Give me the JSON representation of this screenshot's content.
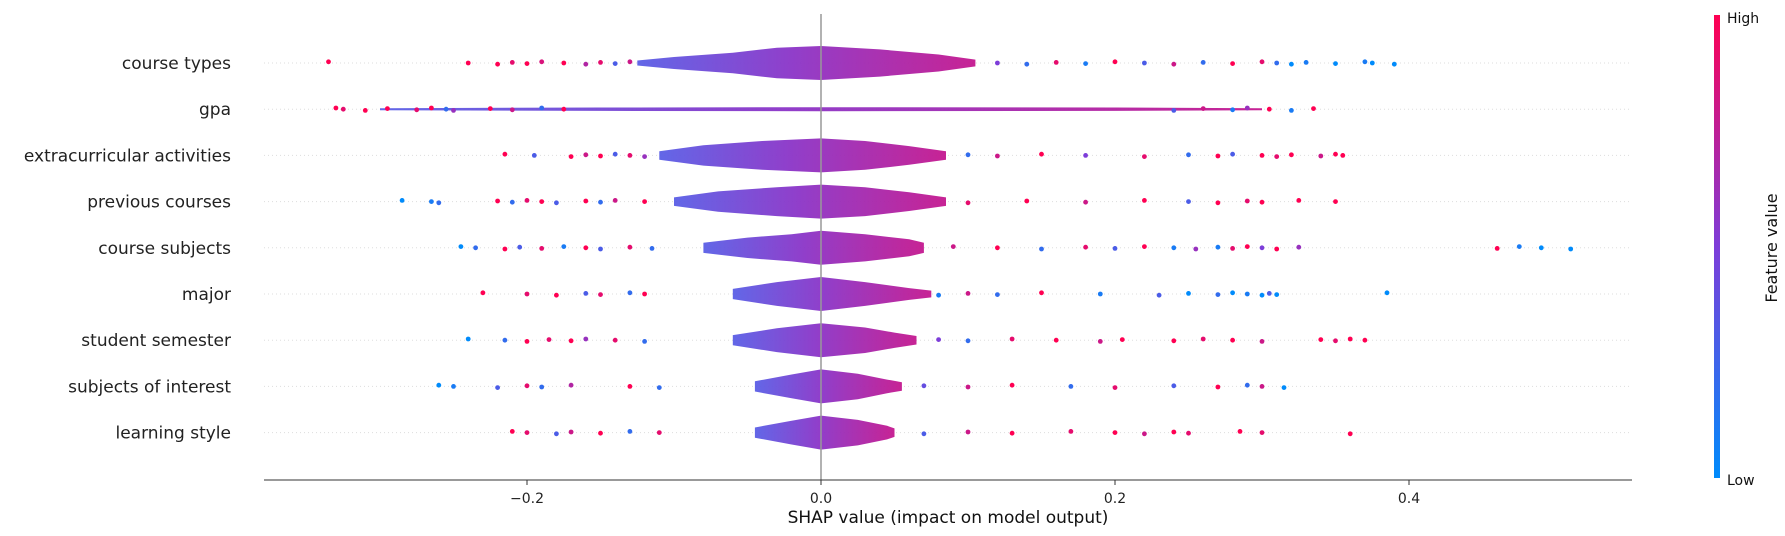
{
  "chart_data": {
    "type": "scatter",
    "title": "",
    "xlabel": "SHAP value (impact on model output)",
    "ylabel": "",
    "xlim": [
      -0.37,
      0.55
    ],
    "xticks": [
      -0.2,
      0.0,
      0.2,
      0.4
    ],
    "xtick_labels": [
      "−0.2",
      "0.0",
      "0.2",
      "0.4"
    ],
    "grid": false,
    "colorbar": {
      "title": "Feature value",
      "high_label": "High",
      "low_label": "Low",
      "high_color": "#ff0052",
      "mid_color": "#7d3dd9",
      "low_color": "#008bfb"
    },
    "features": [
      {
        "name": "course types",
        "violin": [
          [
            -0.125,
            0.15
          ],
          [
            -0.1,
            0.35
          ],
          [
            -0.06,
            0.6
          ],
          [
            -0.03,
            0.9
          ],
          [
            0.0,
            1.0
          ],
          [
            0.04,
            0.8
          ],
          [
            0.08,
            0.5
          ],
          [
            0.105,
            0.2
          ]
        ],
        "points": [
          {
            "x": -0.335,
            "f": 1.0
          },
          {
            "x": -0.24,
            "f": 1.0
          },
          {
            "x": -0.22,
            "f": 1.0
          },
          {
            "x": -0.21,
            "f": 0.9
          },
          {
            "x": -0.2,
            "f": 1.0
          },
          {
            "x": -0.19,
            "f": 0.85
          },
          {
            "x": -0.175,
            "f": 1.0
          },
          {
            "x": -0.16,
            "f": 0.7
          },
          {
            "x": -0.15,
            "f": 0.9
          },
          {
            "x": -0.14,
            "f": 0.3
          },
          {
            "x": -0.13,
            "f": 0.8
          },
          {
            "x": 0.12,
            "f": 0.5
          },
          {
            "x": 0.14,
            "f": 0.2
          },
          {
            "x": 0.16,
            "f": 0.9
          },
          {
            "x": 0.18,
            "f": 0.1
          },
          {
            "x": 0.2,
            "f": 1.0
          },
          {
            "x": 0.22,
            "f": 0.3
          },
          {
            "x": 0.24,
            "f": 0.8
          },
          {
            "x": 0.26,
            "f": 0.2
          },
          {
            "x": 0.28,
            "f": 1.0
          },
          {
            "x": 0.3,
            "f": 0.9
          },
          {
            "x": 0.31,
            "f": 0.2
          },
          {
            "x": 0.32,
            "f": 0.0
          },
          {
            "x": 0.33,
            "f": 0.1
          },
          {
            "x": 0.35,
            "f": 0.0
          },
          {
            "x": 0.37,
            "f": 0.1
          },
          {
            "x": 0.375,
            "f": 0.0
          },
          {
            "x": 0.39,
            "f": 0.0
          }
        ]
      },
      {
        "name": "gpa",
        "violin": [
          [
            -0.3,
            0.06
          ],
          [
            -0.15,
            0.1
          ],
          [
            0.0,
            0.12
          ],
          [
            0.2,
            0.1
          ],
          [
            0.3,
            0.06
          ]
        ],
        "points": [
          {
            "x": -0.33,
            "f": 1.0
          },
          {
            "x": -0.325,
            "f": 0.9
          },
          {
            "x": -0.31,
            "f": 1.0
          },
          {
            "x": -0.295,
            "f": 1.0
          },
          {
            "x": -0.275,
            "f": 0.9
          },
          {
            "x": -0.265,
            "f": 1.0
          },
          {
            "x": -0.255,
            "f": 0.2
          },
          {
            "x": -0.25,
            "f": 0.6
          },
          {
            "x": -0.225,
            "f": 1.0
          },
          {
            "x": -0.21,
            "f": 0.8
          },
          {
            "x": -0.19,
            "f": 0.2
          },
          {
            "x": -0.175,
            "f": 1.0
          },
          {
            "x": 0.24,
            "f": 0.3
          },
          {
            "x": 0.26,
            "f": 0.8
          },
          {
            "x": 0.28,
            "f": 0.1
          },
          {
            "x": 0.29,
            "f": 0.6
          },
          {
            "x": 0.305,
            "f": 1.0
          },
          {
            "x": 0.32,
            "f": 0.1
          },
          {
            "x": 0.335,
            "f": 1.0
          }
        ]
      },
      {
        "name": "extracurricular activities",
        "violin": [
          [
            -0.11,
            0.25
          ],
          [
            -0.08,
            0.6
          ],
          [
            -0.04,
            0.85
          ],
          [
            0.0,
            1.0
          ],
          [
            0.03,
            0.85
          ],
          [
            0.06,
            0.55
          ],
          [
            0.085,
            0.25
          ]
        ],
        "points": [
          {
            "x": -0.215,
            "f": 1.0
          },
          {
            "x": -0.195,
            "f": 0.3
          },
          {
            "x": -0.17,
            "f": 1.0
          },
          {
            "x": -0.16,
            "f": 0.8
          },
          {
            "x": -0.15,
            "f": 1.0
          },
          {
            "x": -0.14,
            "f": 0.3
          },
          {
            "x": -0.13,
            "f": 0.9
          },
          {
            "x": -0.12,
            "f": 0.6
          },
          {
            "x": 0.1,
            "f": 0.2
          },
          {
            "x": 0.12,
            "f": 0.8
          },
          {
            "x": 0.15,
            "f": 1.0
          },
          {
            "x": 0.18,
            "f": 0.5
          },
          {
            "x": 0.22,
            "f": 0.9
          },
          {
            "x": 0.25,
            "f": 0.2
          },
          {
            "x": 0.27,
            "f": 1.0
          },
          {
            "x": 0.28,
            "f": 0.3
          },
          {
            "x": 0.3,
            "f": 1.0
          },
          {
            "x": 0.31,
            "f": 0.9
          },
          {
            "x": 0.32,
            "f": 1.0
          },
          {
            "x": 0.34,
            "f": 0.8
          },
          {
            "x": 0.35,
            "f": 1.0
          },
          {
            "x": 0.355,
            "f": 1.0
          }
        ]
      },
      {
        "name": "previous courses",
        "violin": [
          [
            -0.1,
            0.25
          ],
          [
            -0.07,
            0.6
          ],
          [
            -0.03,
            0.85
          ],
          [
            0.0,
            1.0
          ],
          [
            0.03,
            0.85
          ],
          [
            0.06,
            0.55
          ],
          [
            0.085,
            0.25
          ]
        ],
        "points": [
          {
            "x": -0.285,
            "f": 0.0
          },
          {
            "x": -0.265,
            "f": 0.1
          },
          {
            "x": -0.26,
            "f": 0.2
          },
          {
            "x": -0.22,
            "f": 1.0
          },
          {
            "x": -0.21,
            "f": 0.2
          },
          {
            "x": -0.2,
            "f": 0.9
          },
          {
            "x": -0.19,
            "f": 1.0
          },
          {
            "x": -0.18,
            "f": 0.3
          },
          {
            "x": -0.16,
            "f": 1.0
          },
          {
            "x": -0.15,
            "f": 0.2
          },
          {
            "x": -0.14,
            "f": 0.8
          },
          {
            "x": -0.12,
            "f": 1.0
          },
          {
            "x": 0.1,
            "f": 0.9
          },
          {
            "x": 0.14,
            "f": 1.0
          },
          {
            "x": 0.18,
            "f": 0.8
          },
          {
            "x": 0.22,
            "f": 1.0
          },
          {
            "x": 0.25,
            "f": 0.3
          },
          {
            "x": 0.27,
            "f": 1.0
          },
          {
            "x": 0.29,
            "f": 0.9
          },
          {
            "x": 0.3,
            "f": 1.0
          },
          {
            "x": 0.325,
            "f": 1.0
          },
          {
            "x": 0.35,
            "f": 1.0
          }
        ]
      },
      {
        "name": "course subjects",
        "violin": [
          [
            -0.08,
            0.3
          ],
          [
            -0.05,
            0.6
          ],
          [
            -0.02,
            0.8
          ],
          [
            0.0,
            1.0
          ],
          [
            0.03,
            0.8
          ],
          [
            0.06,
            0.5
          ],
          [
            0.07,
            0.3
          ]
        ],
        "points": [
          {
            "x": -0.245,
            "f": 0.0
          },
          {
            "x": -0.235,
            "f": 0.2
          },
          {
            "x": -0.215,
            "f": 1.0
          },
          {
            "x": -0.205,
            "f": 0.3
          },
          {
            "x": -0.19,
            "f": 0.9
          },
          {
            "x": -0.175,
            "f": 0.1
          },
          {
            "x": -0.16,
            "f": 1.0
          },
          {
            "x": -0.15,
            "f": 0.3
          },
          {
            "x": -0.13,
            "f": 0.9
          },
          {
            "x": -0.115,
            "f": 0.2
          },
          {
            "x": 0.09,
            "f": 0.8
          },
          {
            "x": 0.12,
            "f": 1.0
          },
          {
            "x": 0.15,
            "f": 0.2
          },
          {
            "x": 0.18,
            "f": 0.9
          },
          {
            "x": 0.2,
            "f": 0.3
          },
          {
            "x": 0.22,
            "f": 1.0
          },
          {
            "x": 0.24,
            "f": 0.1
          },
          {
            "x": 0.255,
            "f": 0.6
          },
          {
            "x": 0.27,
            "f": 0.1
          },
          {
            "x": 0.28,
            "f": 0.9
          },
          {
            "x": 0.29,
            "f": 1.0
          },
          {
            "x": 0.3,
            "f": 0.5
          },
          {
            "x": 0.31,
            "f": 1.0
          },
          {
            "x": 0.325,
            "f": 0.6
          },
          {
            "x": 0.46,
            "f": 1.0
          },
          {
            "x": 0.475,
            "f": 0.1
          },
          {
            "x": 0.49,
            "f": 0.0
          },
          {
            "x": 0.51,
            "f": 0.0
          }
        ]
      },
      {
        "name": "major",
        "violin": [
          [
            -0.06,
            0.3
          ],
          [
            -0.03,
            0.7
          ],
          [
            0.0,
            1.0
          ],
          [
            0.03,
            0.7
          ],
          [
            0.06,
            0.35
          ],
          [
            0.075,
            0.2
          ]
        ],
        "points": [
          {
            "x": -0.23,
            "f": 1.0
          },
          {
            "x": -0.2,
            "f": 0.9
          },
          {
            "x": -0.18,
            "f": 1.0
          },
          {
            "x": -0.16,
            "f": 0.3
          },
          {
            "x": -0.15,
            "f": 0.9
          },
          {
            "x": -0.13,
            "f": 0.2
          },
          {
            "x": -0.12,
            "f": 1.0
          },
          {
            "x": 0.08,
            "f": 0.1
          },
          {
            "x": 0.1,
            "f": 0.8
          },
          {
            "x": 0.12,
            "f": 0.2
          },
          {
            "x": 0.15,
            "f": 1.0
          },
          {
            "x": 0.19,
            "f": 0.1
          },
          {
            "x": 0.23,
            "f": 0.3
          },
          {
            "x": 0.25,
            "f": 0.0
          },
          {
            "x": 0.27,
            "f": 0.2
          },
          {
            "x": 0.28,
            "f": 0.0
          },
          {
            "x": 0.29,
            "f": 0.1
          },
          {
            "x": 0.3,
            "f": 0.0
          },
          {
            "x": 0.305,
            "f": 0.3
          },
          {
            "x": 0.31,
            "f": 0.0
          },
          {
            "x": 0.385,
            "f": 0.0
          }
        ]
      },
      {
        "name": "student semester",
        "violin": [
          [
            -0.06,
            0.3
          ],
          [
            -0.03,
            0.7
          ],
          [
            0.0,
            1.0
          ],
          [
            0.03,
            0.75
          ],
          [
            0.05,
            0.45
          ],
          [
            0.065,
            0.25
          ]
        ],
        "points": [
          {
            "x": -0.24,
            "f": 0.0
          },
          {
            "x": -0.215,
            "f": 0.2
          },
          {
            "x": -0.2,
            "f": 1.0
          },
          {
            "x": -0.185,
            "f": 0.9
          },
          {
            "x": -0.17,
            "f": 1.0
          },
          {
            "x": -0.16,
            "f": 0.6
          },
          {
            "x": -0.14,
            "f": 0.9
          },
          {
            "x": -0.12,
            "f": 0.2
          },
          {
            "x": 0.08,
            "f": 0.5
          },
          {
            "x": 0.1,
            "f": 0.2
          },
          {
            "x": 0.13,
            "f": 0.9
          },
          {
            "x": 0.16,
            "f": 1.0
          },
          {
            "x": 0.19,
            "f": 0.8
          },
          {
            "x": 0.205,
            "f": 1.0
          },
          {
            "x": 0.24,
            "f": 1.0
          },
          {
            "x": 0.26,
            "f": 0.9
          },
          {
            "x": 0.28,
            "f": 1.0
          },
          {
            "x": 0.3,
            "f": 0.8
          },
          {
            "x": 0.34,
            "f": 1.0
          },
          {
            "x": 0.35,
            "f": 0.9
          },
          {
            "x": 0.36,
            "f": 1.0
          },
          {
            "x": 0.37,
            "f": 1.0
          }
        ]
      },
      {
        "name": "subjects of interest",
        "violin": [
          [
            -0.045,
            0.3
          ],
          [
            -0.02,
            0.7
          ],
          [
            0.0,
            1.0
          ],
          [
            0.025,
            0.75
          ],
          [
            0.045,
            0.4
          ],
          [
            0.055,
            0.25
          ]
        ],
        "points": [
          {
            "x": -0.26,
            "f": 0.0
          },
          {
            "x": -0.25,
            "f": 0.1
          },
          {
            "x": -0.22,
            "f": 0.3
          },
          {
            "x": -0.2,
            "f": 0.9
          },
          {
            "x": -0.19,
            "f": 0.2
          },
          {
            "x": -0.17,
            "f": 0.7
          },
          {
            "x": -0.13,
            "f": 1.0
          },
          {
            "x": -0.11,
            "f": 0.2
          },
          {
            "x": 0.07,
            "f": 0.4
          },
          {
            "x": 0.1,
            "f": 0.8
          },
          {
            "x": 0.13,
            "f": 1.0
          },
          {
            "x": 0.17,
            "f": 0.2
          },
          {
            "x": 0.2,
            "f": 0.9
          },
          {
            "x": 0.24,
            "f": 0.3
          },
          {
            "x": 0.27,
            "f": 1.0
          },
          {
            "x": 0.29,
            "f": 0.2
          },
          {
            "x": 0.3,
            "f": 0.8
          },
          {
            "x": 0.315,
            "f": 0.0
          }
        ]
      },
      {
        "name": "learning style",
        "violin": [
          [
            -0.045,
            0.3
          ],
          [
            -0.02,
            0.7
          ],
          [
            0.0,
            1.0
          ],
          [
            0.025,
            0.75
          ],
          [
            0.045,
            0.4
          ],
          [
            0.05,
            0.25
          ]
        ],
        "points": [
          {
            "x": -0.21,
            "f": 1.0
          },
          {
            "x": -0.2,
            "f": 0.9
          },
          {
            "x": -0.18,
            "f": 0.3
          },
          {
            "x": -0.17,
            "f": 0.8
          },
          {
            "x": -0.15,
            "f": 1.0
          },
          {
            "x": -0.13,
            "f": 0.2
          },
          {
            "x": -0.11,
            "f": 0.9
          },
          {
            "x": 0.07,
            "f": 0.3
          },
          {
            "x": 0.1,
            "f": 0.8
          },
          {
            "x": 0.13,
            "f": 1.0
          },
          {
            "x": 0.17,
            "f": 0.9
          },
          {
            "x": 0.2,
            "f": 1.0
          },
          {
            "x": 0.22,
            "f": 0.8
          },
          {
            "x": 0.24,
            "f": 1.0
          },
          {
            "x": 0.25,
            "f": 0.9
          },
          {
            "x": 0.285,
            "f": 1.0
          },
          {
            "x": 0.3,
            "f": 0.9
          },
          {
            "x": 0.36,
            "f": 1.0
          }
        ]
      }
    ]
  }
}
